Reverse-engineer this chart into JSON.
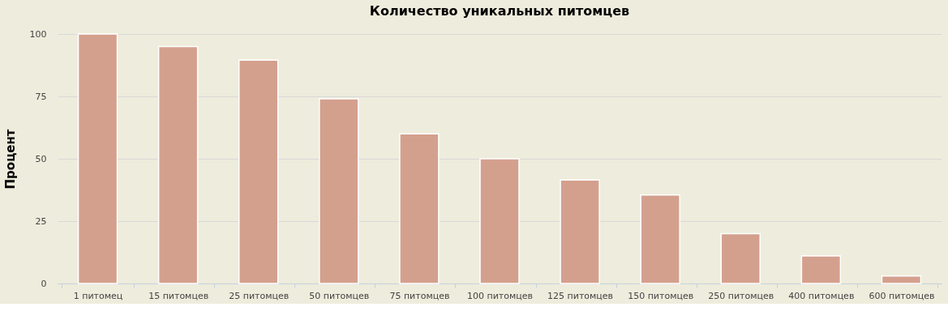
{
  "chart_data": {
    "type": "bar",
    "title": "Количество уникальных питомцев",
    "ylabel": "Процент",
    "categories": [
      "1 питомец",
      "15 питомцев",
      "25 питомцев",
      "50 питомцев",
      "75 питомцев",
      "100 питомцев",
      "125 питомцев",
      "150 питомцев",
      "250 питомцев",
      "400 питомцев",
      "600 питомцев"
    ],
    "values": [
      100,
      95,
      89.5,
      74,
      60,
      50,
      41.5,
      35.5,
      20,
      11,
      3
    ],
    "color": "#d4a08e",
    "ylim": [
      0,
      100
    ],
    "yticks": [
      0,
      25,
      50,
      75,
      100
    ],
    "grid": "y"
  }
}
